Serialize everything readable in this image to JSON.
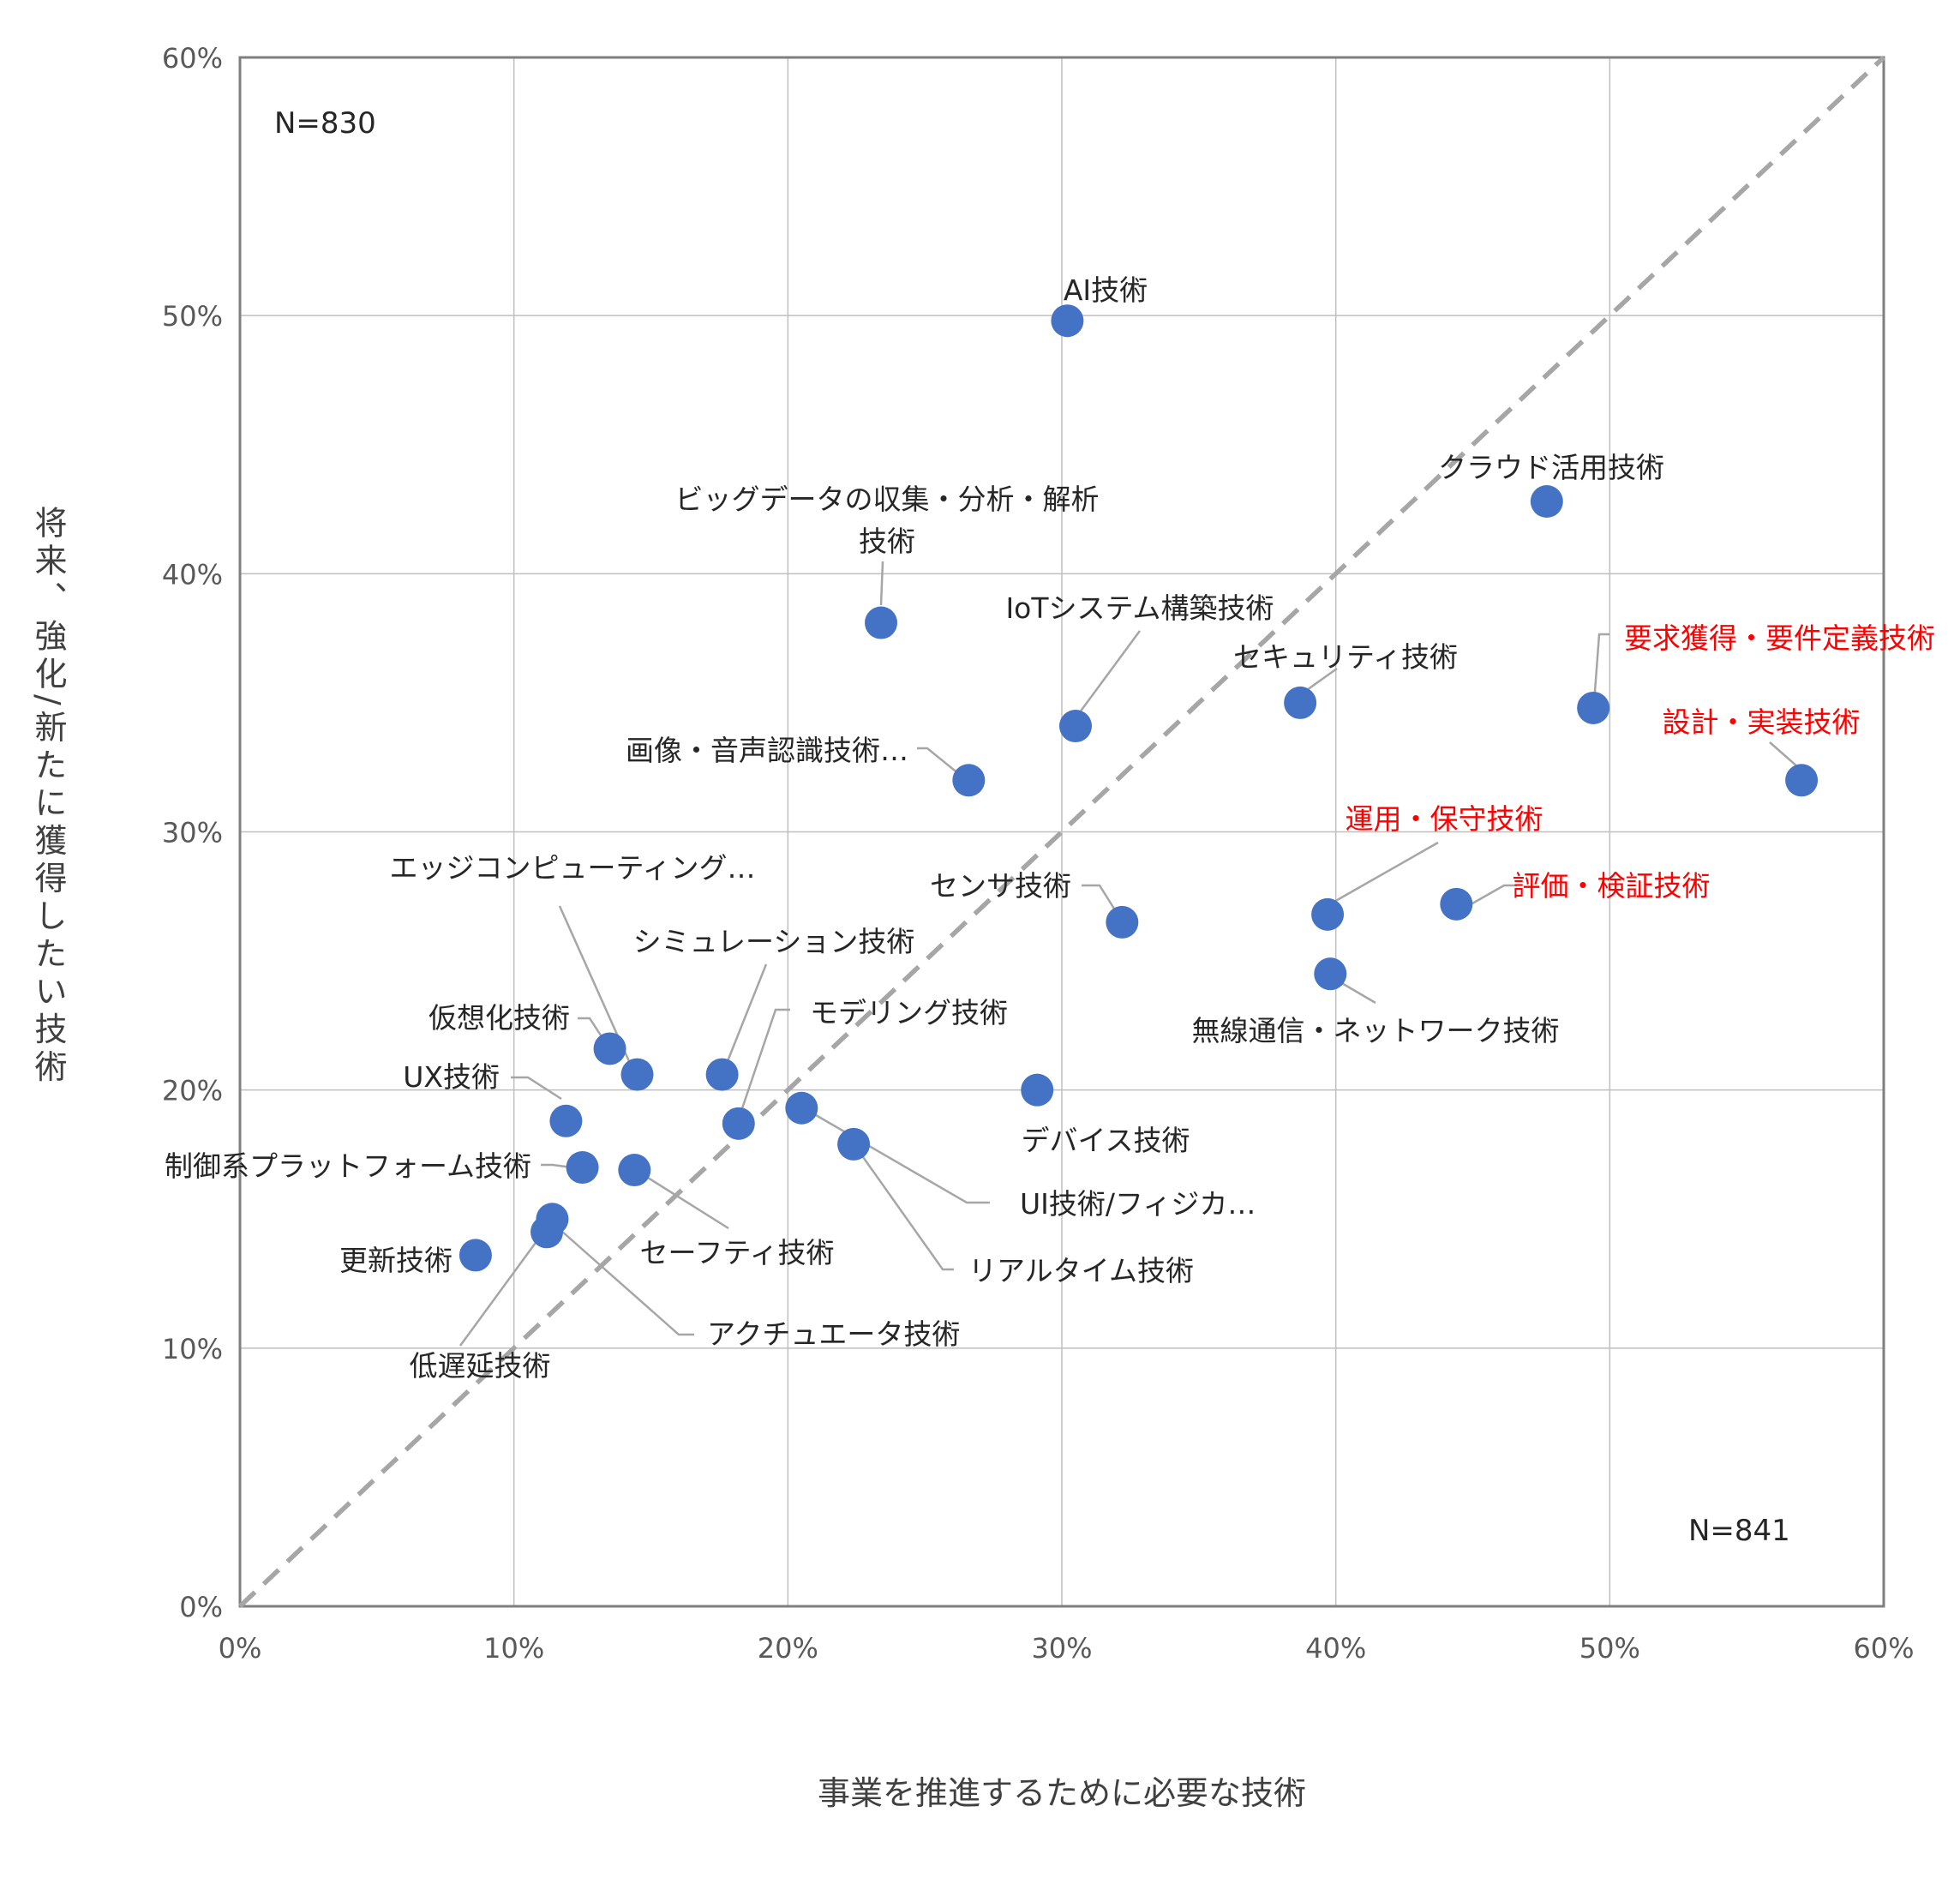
{
  "chart_data": {
    "type": "scatter",
    "xlabel": "事業を推進するために必要な技術",
    "ylabel": "将来、強化/新たに獲得したい技術",
    "xlim": [
      0,
      60
    ],
    "ylim": [
      0,
      60
    ],
    "x_ticks": [
      "0%",
      "10%",
      "20%",
      "30%",
      "40%",
      "50%",
      "60%"
    ],
    "y_ticks": [
      "0%",
      "10%",
      "20%",
      "30%",
      "40%",
      "50%",
      "60%"
    ],
    "grid": true,
    "diagonal_reference_line": "y=x, dashed gray",
    "n_x": "N=841",
    "n_y": "N=830",
    "colors": {
      "point": "#4472c4",
      "label": "#262626",
      "highlight": "#ff0000",
      "leader": "#a6a6a6",
      "grid": "#bfbfbf",
      "diagonal": "#a6a6a6"
    },
    "points": [
      {
        "label": "AI技術",
        "x": 30.2,
        "y": 49.8,
        "highlight": false
      },
      {
        "label": "クラウド活用技術",
        "x": 47.7,
        "y": 42.8,
        "highlight": false
      },
      {
        "label": "ビッグデータの収集・分析・解析",
        "label2": "技術",
        "x": 23.4,
        "y": 38.1,
        "highlight": false
      },
      {
        "label": "IoTシステム構築技術",
        "x": 30.5,
        "y": 34.1,
        "highlight": false
      },
      {
        "label": "セキュリティ技術",
        "x": 38.7,
        "y": 35.0,
        "highlight": false
      },
      {
        "label": "要求獲得・要件定義技術",
        "x": 49.4,
        "y": 34.8,
        "highlight": true
      },
      {
        "label": "設計・実装技術",
        "x": 57.0,
        "y": 32.0,
        "highlight": true
      },
      {
        "label": "画像・音声認識技術…",
        "x": 26.6,
        "y": 32.0,
        "highlight": false
      },
      {
        "label": "運用・保守技術",
        "x": 39.7,
        "y": 26.8,
        "highlight": true
      },
      {
        "label": "評価・検証技術",
        "x": 44.4,
        "y": 27.2,
        "highlight": true
      },
      {
        "label": "センサ技術",
        "x": 32.2,
        "y": 26.5,
        "highlight": false
      },
      {
        "label": "無線通信・ネットワーク技術",
        "x": 39.8,
        "y": 24.5,
        "highlight": false
      },
      {
        "label": "エッジコンピューティング…",
        "x": 14.5,
        "y": 20.6,
        "highlight": false
      },
      {
        "label": "シミュレーション技術",
        "x": 17.6,
        "y": 20.6,
        "highlight": false
      },
      {
        "label": "仮想化技術",
        "x": 13.5,
        "y": 21.6,
        "highlight": false
      },
      {
        "label": "モデリング技術",
        "x": 18.2,
        "y": 18.7,
        "highlight": false
      },
      {
        "label": "UX技術",
        "x": 11.9,
        "y": 18.8,
        "highlight": false
      },
      {
        "label": "デバイス技術",
        "x": 29.1,
        "y": 20.0,
        "highlight": false
      },
      {
        "label": "UI技術/フィジカ…",
        "x": 20.5,
        "y": 19.3,
        "highlight": false
      },
      {
        "label": "制御系プラットフォーム技術",
        "x": 12.5,
        "y": 17.0,
        "highlight": false
      },
      {
        "label": "セーフティ技術",
        "x": 14.4,
        "y": 16.9,
        "highlight": false
      },
      {
        "label": "リアルタイム技術",
        "x": 22.4,
        "y": 17.9,
        "highlight": false
      },
      {
        "label": "更新技術",
        "x": 8.6,
        "y": 13.6,
        "highlight": false
      },
      {
        "label": "アクチュエータ技術",
        "x": 11.4,
        "y": 15.0,
        "highlight": false
      },
      {
        "label": "低遅延技術",
        "x": 11.2,
        "y": 14.5,
        "highlight": false
      }
    ]
  }
}
